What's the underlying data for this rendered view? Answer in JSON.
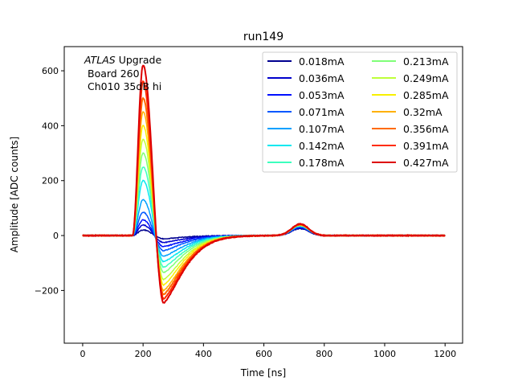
{
  "chart_data": {
    "type": "line",
    "title": "run149",
    "xlabel": "Time [ns]",
    "ylabel": "Amplitude [ADC counts]",
    "xlim": [
      -61,
      1258
    ],
    "ylim": [
      -392,
      688
    ],
    "xticks": [
      0,
      200,
      400,
      600,
      800,
      1000,
      1200
    ],
    "xtick_labels": [
      "0",
      "200",
      "400",
      "600",
      "800",
      "1000",
      "1200"
    ],
    "yticks": [
      -200,
      0,
      200,
      400,
      600
    ],
    "ytick_labels": [
      "−200",
      "0",
      "200",
      "400",
      "600"
    ],
    "grid": false,
    "legend_placement": "top-right",
    "legend_columns": 2,
    "annotation": {
      "line1_italic": "ATLAS",
      "line1_rest": " Upgrade",
      "line2": "Board 260",
      "line3": "Ch010 35dB hi"
    },
    "x_range_ns": [
      0,
      1200
    ],
    "pulse_start_ns": 165,
    "peak_time_ns": 200,
    "trough_time_ns": 268,
    "bump_time_ns": 720,
    "series": [
      {
        "name": "0.018mA",
        "color": "#00008f",
        "peak": 20,
        "trough": -12,
        "bump": 25
      },
      {
        "name": "0.036mA",
        "color": "#0000cc",
        "peak": 38,
        "trough": -25,
        "bump": 28
      },
      {
        "name": "0.053mA",
        "color": "#0010ff",
        "peak": 57,
        "trough": -40,
        "bump": 30
      },
      {
        "name": "0.071mA",
        "color": "#0058ff",
        "peak": 85,
        "trough": -55,
        "bump": 32
      },
      {
        "name": "0.107mA",
        "color": "#00a0ff",
        "peak": 130,
        "trough": -75,
        "bump": 34
      },
      {
        "name": "0.142mA",
        "color": "#08e8f0",
        "peak": 200,
        "trough": -95,
        "bump": 35
      },
      {
        "name": "0.178mA",
        "color": "#3cffbe",
        "peak": 250,
        "trough": -115,
        "bump": 36
      },
      {
        "name": "0.213mA",
        "color": "#80ff78",
        "peak": 300,
        "trough": -135,
        "bump": 37
      },
      {
        "name": "0.249mA",
        "color": "#beff3a",
        "peak": 350,
        "trough": -160,
        "bump": 38
      },
      {
        "name": "0.285mA",
        "color": "#f8f000",
        "peak": 400,
        "trough": -180,
        "bump": 39
      },
      {
        "name": "0.32mA",
        "color": "#ffb000",
        "peak": 450,
        "trough": -200,
        "bump": 40
      },
      {
        "name": "0.356mA",
        "color": "#ff6a00",
        "peak": 500,
        "trough": -215,
        "bump": 40
      },
      {
        "name": "0.391mA",
        "color": "#ff2c00",
        "peak": 560,
        "trough": -230,
        "bump": 41
      },
      {
        "name": "0.427mA",
        "color": "#dd0000",
        "peak": 620,
        "trough": -245,
        "bump": 42
      }
    ]
  }
}
